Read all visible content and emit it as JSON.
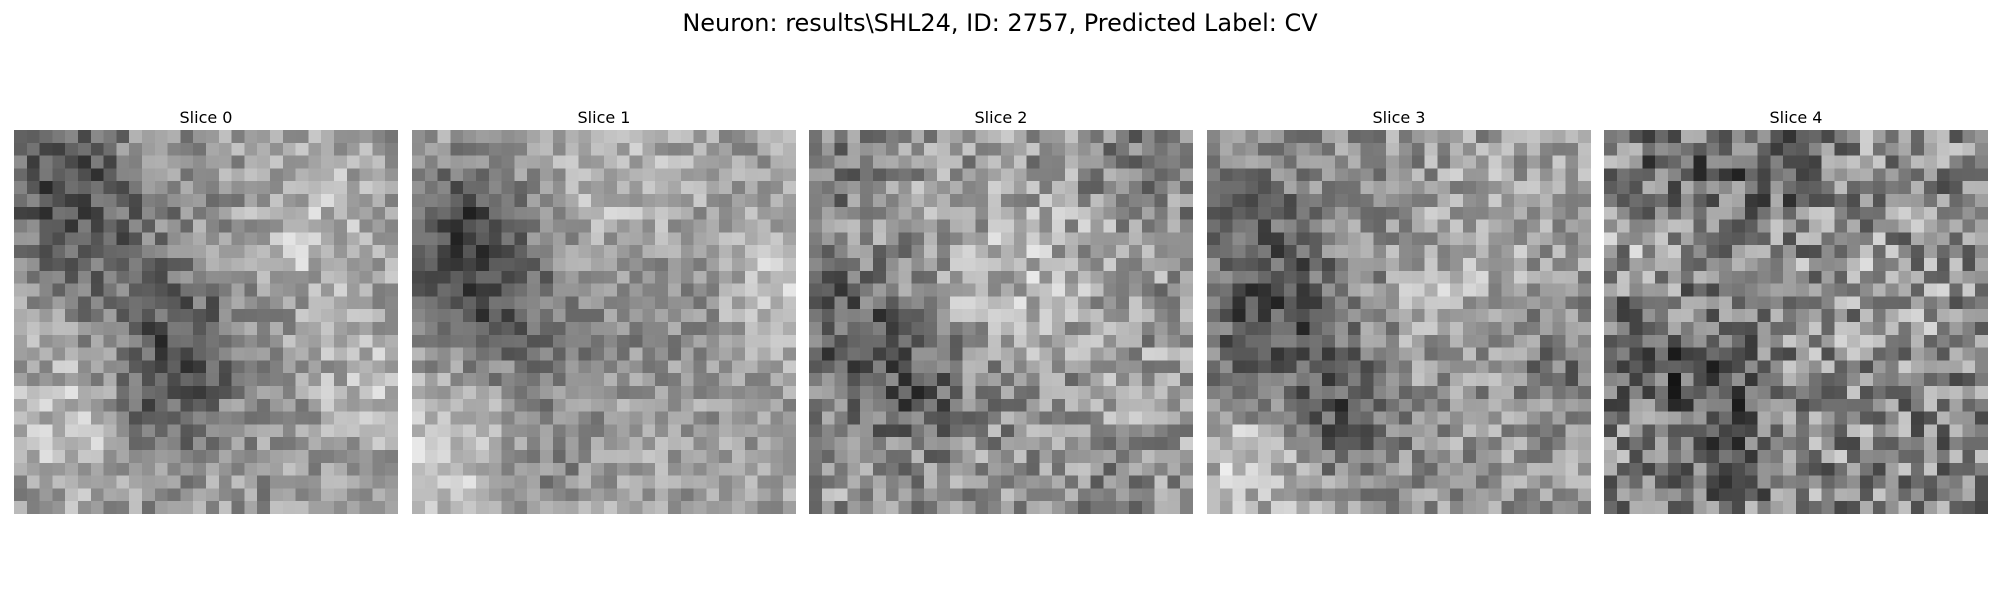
{
  "figure": {
    "title": "Neuron: results\\SHL24, ID: 2757, Predicted Label: CV",
    "colormap": "gray",
    "slices": [
      {
        "label": "Slice 0"
      },
      {
        "label": "Slice 1"
      },
      {
        "label": "Slice 2"
      },
      {
        "label": "Slice 3"
      },
      {
        "label": "Slice 4"
      }
    ]
  }
}
